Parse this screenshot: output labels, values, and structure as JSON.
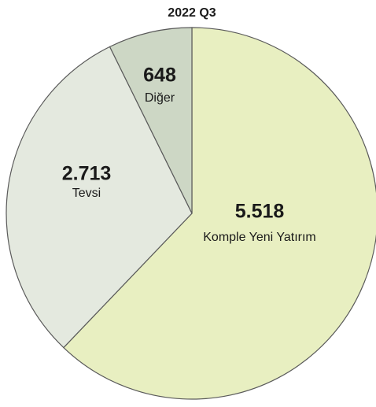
{
  "chart_data": {
    "type": "pie",
    "title": "2022 Q3",
    "categories": [
      "Komple Yeni Yatırım",
      "Tevsi",
      "Diğer"
    ],
    "values": [
      5518,
      2713,
      648
    ],
    "value_labels": [
      "5.518",
      "2.713",
      "648"
    ],
    "colors": [
      "#e8efc1",
      "#e4e9df",
      "#cdd7c5"
    ]
  }
}
